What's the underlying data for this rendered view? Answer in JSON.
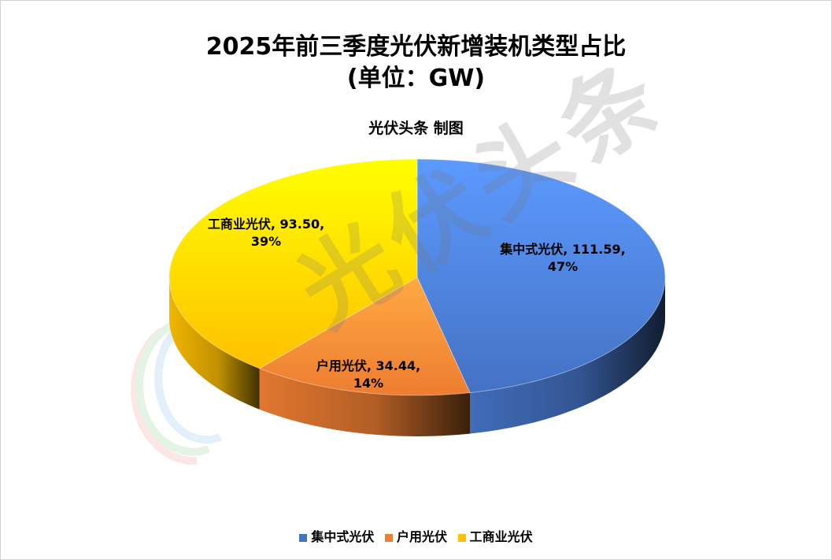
{
  "title_line1": "2025年前三季度光伏新增装机类型占比",
  "title_line2": "(单位：GW)",
  "subtitle": "光伏头条 制图",
  "watermark": "光伏头条",
  "chart_data": {
    "type": "pie",
    "title": "2025年前三季度光伏新增装机类型占比 (单位：GW)",
    "subtitle": "光伏头条 制图",
    "categories": [
      "集中式光伏",
      "户用光伏",
      "工商业光伏"
    ],
    "values": [
      111.59,
      34.44,
      93.5
    ],
    "percent_labels": [
      "47%",
      "14%",
      "39%"
    ],
    "data_labels": [
      [
        "集中式光伏, 111.59,",
        "47%"
      ],
      [
        "户用光伏, 34.44,",
        "14%"
      ],
      [
        "工商业光伏, 93.50,",
        "39%"
      ]
    ],
    "colors": [
      "#4472C4",
      "#ED7D31",
      "#FFC000"
    ],
    "legend_position": "bottom",
    "style": "3d-pie"
  }
}
